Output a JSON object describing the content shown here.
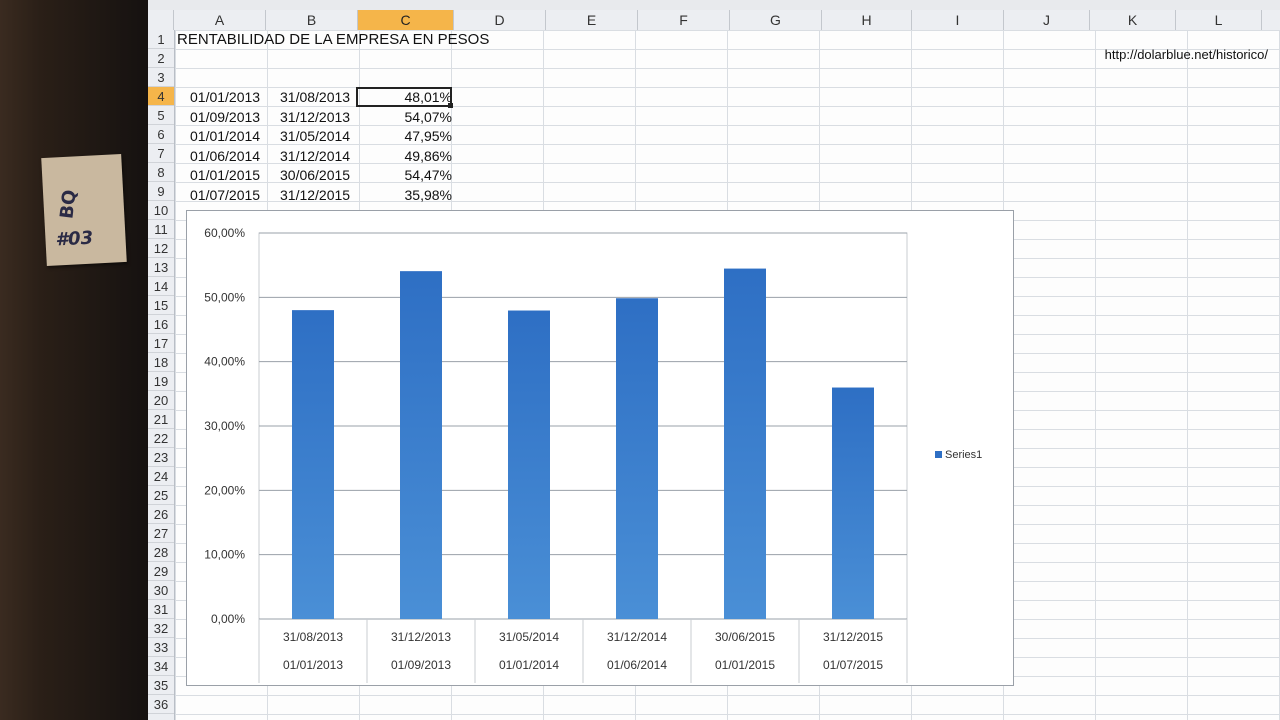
{
  "columns": [
    "A",
    "B",
    "C",
    "D",
    "E",
    "F",
    "G",
    "H",
    "I",
    "J",
    "K",
    "L"
  ],
  "active_column": "C",
  "rows": [
    "1",
    "2",
    "3",
    "4",
    "5",
    "6",
    "7",
    "8",
    "9",
    "10",
    "11",
    "12",
    "13",
    "14",
    "15",
    "16",
    "17",
    "18",
    "19",
    "20",
    "21",
    "22",
    "23",
    "24",
    "25",
    "26",
    "27",
    "28",
    "29",
    "30",
    "31",
    "32",
    "33",
    "34",
    "35",
    "36"
  ],
  "active_row": "4",
  "sheet": {
    "title": "RENTABILIDAD DE LA EMPRESA EN PESOS",
    "source_url": "http://dolarblue.net/historico/",
    "table": [
      {
        "start": "01/01/2013",
        "end": "31/08/2013",
        "pct": "48,01%"
      },
      {
        "start": "01/09/2013",
        "end": "31/12/2013",
        "pct": "54,07%"
      },
      {
        "start": "01/01/2014",
        "end": "31/05/2014",
        "pct": "47,95%"
      },
      {
        "start": "01/06/2014",
        "end": "31/12/2014",
        "pct": "49,86%"
      },
      {
        "start": "01/01/2015",
        "end": "30/06/2015",
        "pct": "54,47%"
      },
      {
        "start": "01/07/2015",
        "end": "31/12/2015",
        "pct": "35,98%"
      }
    ]
  },
  "sticky_note": {
    "line1": "BQ",
    "line2": "#03"
  },
  "colors": {
    "bar": "#2e6fc4",
    "bar_light": "#4a8fd6",
    "selection": "#f5b54a"
  },
  "chart_data": {
    "type": "bar",
    "categories_top": [
      "31/08/2013",
      "31/12/2013",
      "31/05/2014",
      "31/12/2014",
      "30/06/2015",
      "31/12/2015"
    ],
    "categories_bottom": [
      "01/01/2013",
      "01/09/2013",
      "01/01/2014",
      "01/06/2014",
      "01/01/2015",
      "01/07/2015"
    ],
    "series": [
      {
        "name": "Series1",
        "values": [
          48.01,
          54.07,
          47.95,
          49.86,
          54.47,
          35.98
        ]
      }
    ],
    "ylim": [
      0,
      60
    ],
    "yticks": [
      "0,00%",
      "10,00%",
      "20,00%",
      "30,00%",
      "40,00%",
      "50,00%",
      "60,00%"
    ],
    "grid": true,
    "legend": "right"
  }
}
